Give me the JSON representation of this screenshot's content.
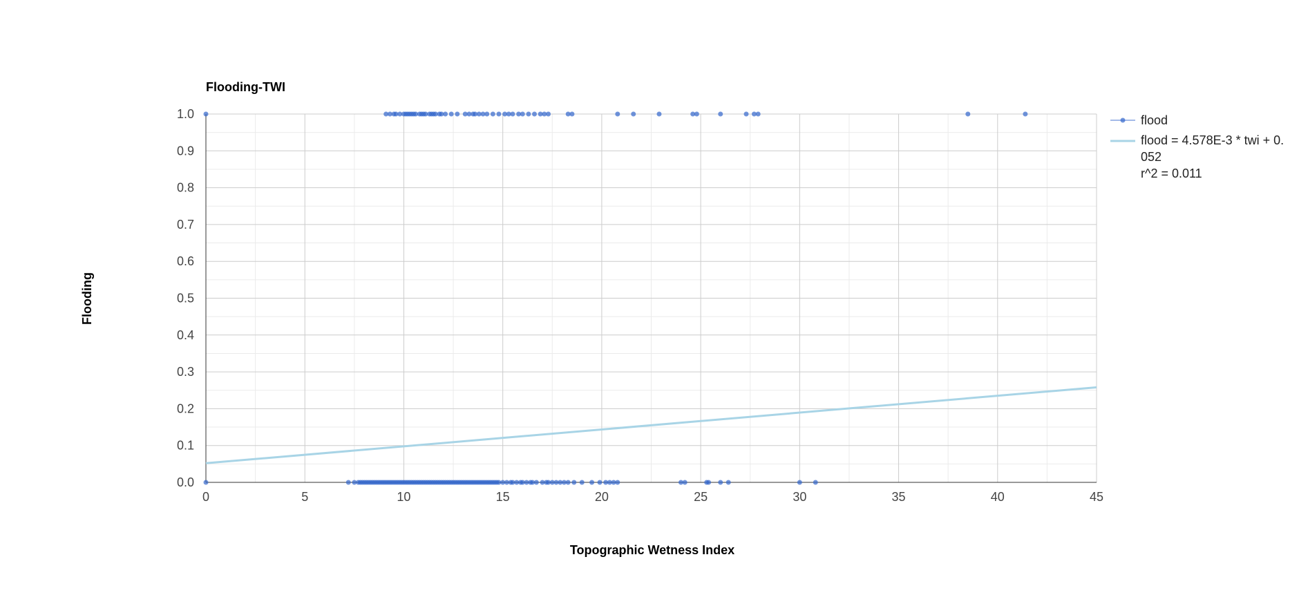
{
  "chart_data": {
    "type": "scatter",
    "title": "Flooding-TWI",
    "xlabel": "Topographic Wetness Index",
    "ylabel": "Flooding",
    "xlim": [
      0,
      45
    ],
    "ylim": [
      0,
      1
    ],
    "x_ticks": [
      "0",
      "5",
      "10",
      "15",
      "20",
      "25",
      "30",
      "35",
      "40",
      "45"
    ],
    "y_ticks": [
      "0.0",
      "0.1",
      "0.2",
      "0.3",
      "0.4",
      "0.5",
      "0.6",
      "0.7",
      "0.8",
      "0.9",
      "1.0"
    ],
    "grid": true,
    "legend_position": "right",
    "point_color": "#3366cc",
    "trendline_color": "#a8d4e6",
    "series": [
      {
        "name": "flood",
        "points_y1": [
          0,
          9.1,
          9.3,
          9.5,
          9.6,
          9.8,
          10.0,
          10.1,
          10.2,
          10.3,
          10.4,
          10.5,
          10.6,
          10.8,
          10.9,
          11.0,
          11.1,
          11.3,
          11.4,
          11.5,
          11.6,
          11.8,
          11.9,
          12.1,
          12.4,
          12.7,
          13.1,
          13.3,
          13.5,
          13.6,
          13.8,
          14.0,
          14.2,
          14.5,
          14.8,
          15.1,
          15.3,
          15.5,
          15.8,
          16.0,
          16.3,
          16.6,
          16.9,
          17.1,
          17.3,
          18.3,
          18.5,
          20.8,
          21.6,
          22.9,
          24.6,
          24.8,
          26.0,
          27.3,
          27.7,
          27.9,
          38.5,
          41.4
        ],
        "points_y0": [
          0,
          7.2,
          7.5,
          7.7,
          7.8,
          7.9,
          8.0,
          8.1,
          8.2,
          8.3,
          8.4,
          8.5,
          8.6,
          8.7,
          8.8,
          8.9,
          9.0,
          9.1,
          9.2,
          9.3,
          9.4,
          9.5,
          9.6,
          9.7,
          9.8,
          9.9,
          10.0,
          10.1,
          10.2,
          10.3,
          10.4,
          10.5,
          10.6,
          10.7,
          10.8,
          10.9,
          11.0,
          11.1,
          11.2,
          11.3,
          11.4,
          11.5,
          11.6,
          11.7,
          11.8,
          11.9,
          12.0,
          12.1,
          12.2,
          12.3,
          12.4,
          12.5,
          12.6,
          12.7,
          12.8,
          12.9,
          13.0,
          13.1,
          13.2,
          13.3,
          13.4,
          13.5,
          13.6,
          13.7,
          13.8,
          13.9,
          14.0,
          14.1,
          14.2,
          14.3,
          14.4,
          14.5,
          14.6,
          14.7,
          14.8,
          15.0,
          15.2,
          15.4,
          15.5,
          15.7,
          15.9,
          16.0,
          16.2,
          16.4,
          16.5,
          16.7,
          17.0,
          17.2,
          17.3,
          17.5,
          17.7,
          17.9,
          18.1,
          18.3,
          18.6,
          19.0,
          19.5,
          19.9,
          20.2,
          20.4,
          20.6,
          20.8,
          24.0,
          24.2,
          25.3,
          25.4,
          26.0,
          26.4,
          30.0,
          30.8
        ]
      },
      {
        "name": "flood = 4.578E-3 * twi + 0.052",
        "type": "trendline",
        "slope": 0.004578,
        "intercept": 0.052
      }
    ],
    "legend": {
      "entry_points": "flood",
      "entry_trend_line1": "flood = 4.578E-3 * twi + 0.",
      "entry_trend_line2": "052",
      "entry_trend_line3": "r^2 = 0.011"
    }
  }
}
